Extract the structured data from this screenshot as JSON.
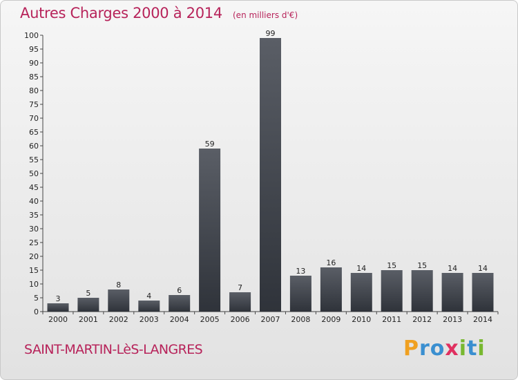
{
  "header": {
    "title": "Autres Charges 2000 à 2014",
    "unit": "(en milliers d'€)"
  },
  "commune": "SAINT-MARTIN-LèS-LANGRES",
  "logo": {
    "text": "Proxiti",
    "letters": [
      "P",
      "r",
      "o",
      "x",
      "i",
      "t",
      "i"
    ],
    "colors": [
      "#f0a020",
      "#3a8fd0",
      "#3a8fd0",
      "#e03060",
      "#78b830",
      "#3a8fd0",
      "#78b830"
    ]
  },
  "colors": {
    "title": "#b7235a",
    "bar_top": "#5a5e66",
    "bar_bottom": "#2f333a"
  },
  "chart_data": {
    "type": "bar",
    "title": "Autres Charges 2000 à 2014",
    "unit": "(en milliers d'€)",
    "categories": [
      "2000",
      "2001",
      "2002",
      "2003",
      "2004",
      "2005",
      "2006",
      "2007",
      "2008",
      "2009",
      "2010",
      "2011",
      "2012",
      "2013",
      "2014"
    ],
    "values": [
      3,
      5,
      8,
      4,
      6,
      59,
      7,
      99,
      13,
      16,
      14,
      15,
      15,
      14,
      14
    ],
    "ylim": [
      0,
      100
    ],
    "yticks": [
      0,
      5,
      10,
      15,
      20,
      25,
      30,
      35,
      40,
      45,
      50,
      55,
      60,
      65,
      70,
      75,
      80,
      85,
      90,
      95,
      100
    ],
    "grid": false,
    "data_labels": true
  }
}
